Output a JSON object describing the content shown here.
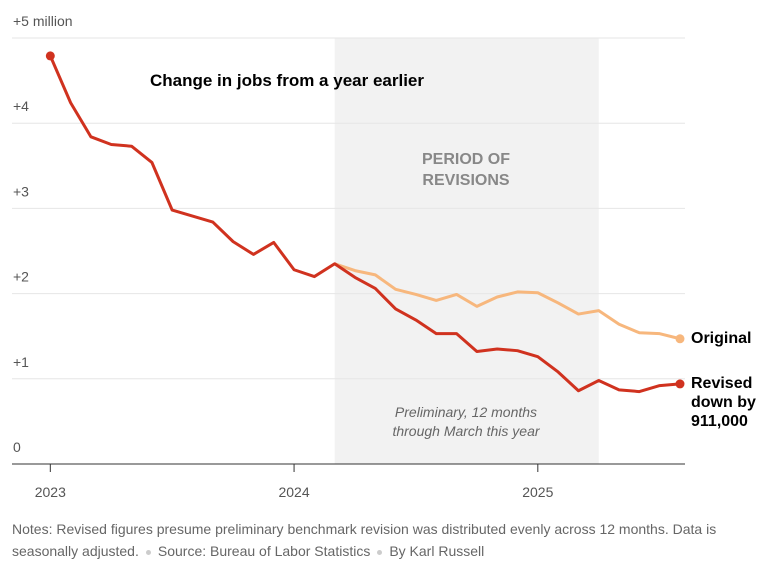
{
  "chart_data": {
    "type": "line",
    "title": "Change in jobs from a year earlier",
    "x": [
      "2023-01",
      "2023-02",
      "2023-03",
      "2023-04",
      "2023-05",
      "2023-06",
      "2023-07",
      "2023-08",
      "2023-09",
      "2023-10",
      "2023-11",
      "2023-12",
      "2024-01",
      "2024-02",
      "2024-03",
      "2024-04",
      "2024-05",
      "2024-06",
      "2024-07",
      "2024-08",
      "2024-09",
      "2024-10",
      "2024-11",
      "2024-12",
      "2025-01",
      "2025-02",
      "2025-03",
      "2025-04",
      "2025-05",
      "2025-06",
      "2025-07",
      "2025-08"
    ],
    "series": [
      {
        "name": "Revised down by 911,000",
        "color": "#d0321f",
        "values": [
          4.79,
          4.24,
          3.84,
          3.75,
          3.73,
          3.54,
          2.98,
          2.91,
          2.84,
          2.61,
          2.46,
          2.6,
          2.28,
          2.2,
          2.35,
          2.19,
          2.06,
          1.82,
          1.69,
          1.53,
          1.53,
          1.32,
          1.35,
          1.33,
          1.26,
          1.08,
          0.86,
          0.98,
          0.87,
          0.85,
          0.92,
          0.94
        ]
      },
      {
        "name": "Original",
        "color": "#f7b77d",
        "values": [
          null,
          null,
          null,
          null,
          null,
          null,
          null,
          null,
          null,
          null,
          null,
          null,
          null,
          null,
          2.35,
          2.27,
          2.22,
          2.05,
          1.99,
          1.92,
          1.99,
          1.85,
          1.96,
          2.02,
          2.01,
          1.89,
          1.76,
          1.8,
          1.64,
          1.54,
          1.53,
          1.47
        ]
      }
    ],
    "xlim": [
      "2022-12",
      "2025-08"
    ],
    "xticks": [
      2023,
      2024,
      2025
    ],
    "ylim": [
      0,
      5
    ],
    "yticks": [
      0,
      {
        "value": 1,
        "label": "+1"
      },
      {
        "value": 2,
        "label": "+2"
      },
      {
        "value": 3,
        "label": "+3"
      },
      {
        "value": 4,
        "label": "+4"
      },
      {
        "value": 5,
        "label": "+5 million"
      }
    ],
    "grid": true,
    "shaded_region": {
      "from": "2024-03",
      "to": "2025-04",
      "color": "#f2f2f2",
      "label": "PERIOD OF REVISIONS",
      "note": "Preliminary, 12 months through March this year"
    },
    "notes": "Notes: Revised figures presume preliminary benchmark revision was distributed evenly across 12 months. Data is seasonally adjusted.",
    "source": "Source: Bureau of Labor Statistics",
    "byline": "By Karl Russell"
  }
}
